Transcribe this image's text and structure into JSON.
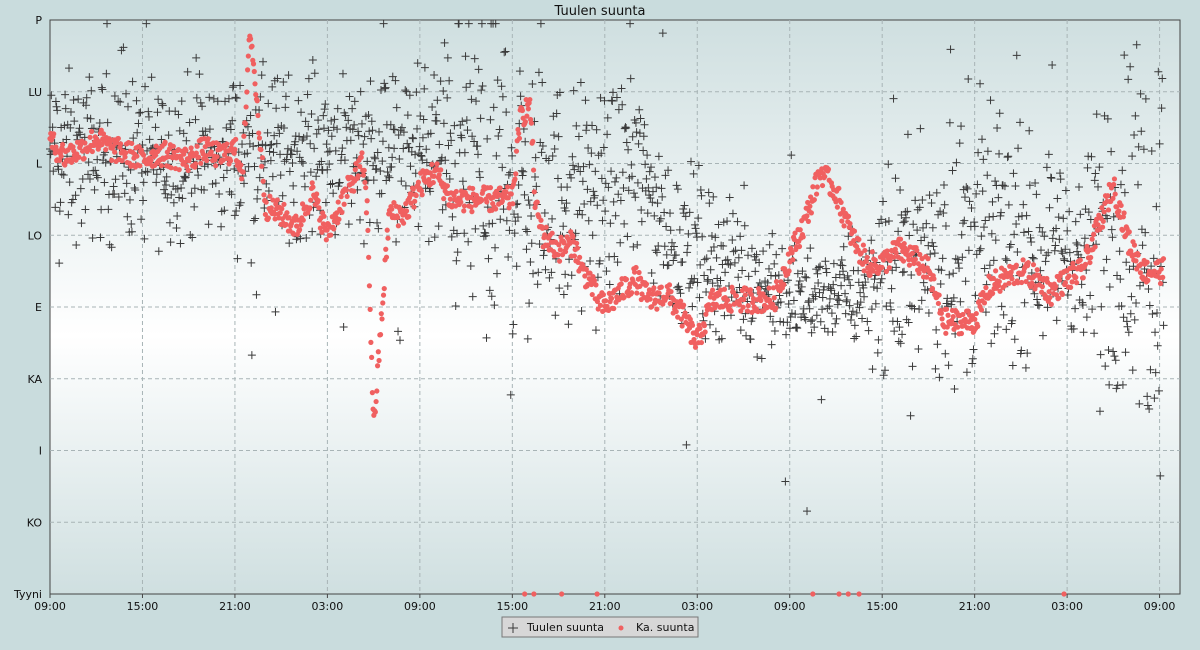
{
  "chart_data": {
    "type": "scatter",
    "title": "Tuulen suunta",
    "y_categories": [
      "Tyyni",
      "KO",
      "I",
      "KA",
      "E",
      "LO",
      "L",
      "LU",
      "P"
    ],
    "x_tick_labels": [
      "09:00",
      "15:00",
      "21:00",
      "03:00",
      "09:00",
      "15:00",
      "21:00",
      "03:00",
      "09:00",
      "15:00",
      "21:00",
      "03:00",
      "09:00"
    ],
    "x_range_hours": [
      0,
      73
    ],
    "ylim": [
      0,
      8
    ],
    "grid": true,
    "legend_position": "bottom-center",
    "colors": {
      "raw": "#3a3a3a",
      "avg": "#f06060"
    },
    "series": [
      {
        "name": "Tuulen suunta",
        "marker": "plus",
        "note_x_unit": "hours",
        "segments_x": [
          0,
          12,
          20,
          24,
          27,
          30,
          31,
          36,
          38,
          40,
          46,
          48,
          51,
          56,
          60,
          63,
          66,
          67,
          69,
          71,
          72
        ],
        "segments_y_center": [
          6.1,
          6.1,
          6.2,
          6.15,
          6.0,
          5.7,
          5.5,
          5.5,
          6.0,
          5.0,
          4.3,
          4.1,
          4.2,
          4.6,
          5.0,
          4.9,
          4.9,
          4.5,
          5.2,
          5.0,
          5.0
        ],
        "segments_spread": [
          0.55,
          0.55,
          0.55,
          0.5,
          1.2,
          1.3,
          0.9,
          0.7,
          0.6,
          0.6,
          0.4,
          0.35,
          0.3,
          0.8,
          0.9,
          0.7,
          0.55,
          0.6,
          1.2,
          1.4,
          1.4
        ]
      },
      {
        "name": "Ka. suunta",
        "marker": "circle",
        "points_x": [
          0,
          1,
          2,
          3,
          4,
          5,
          6,
          7,
          8,
          9,
          10,
          11,
          12,
          12.5,
          13,
          14,
          15,
          16,
          17,
          18,
          19,
          20,
          20.3,
          20.6,
          21,
          22,
          23,
          24,
          25,
          26,
          27,
          28,
          29,
          30,
          30.5,
          31,
          31.2,
          31.5,
          32,
          33,
          34,
          34.5,
          35,
          35.5,
          36,
          37,
          38,
          38.5,
          39,
          40,
          41,
          42,
          43,
          44,
          45,
          46,
          47,
          48,
          49,
          50,
          51,
          52,
          53,
          54,
          55,
          56,
          57,
          58,
          59,
          60,
          61,
          62,
          63,
          64,
          65,
          66,
          67,
          68,
          69,
          70,
          71,
          72
        ],
        "points_y": [
          6.3,
          6.1,
          6.2,
          6.35,
          6.2,
          6.15,
          6.05,
          6.15,
          6.1,
          6.05,
          6.2,
          6.1,
          6.2,
          5.9,
          7.9,
          5.4,
          5.3,
          5.1,
          5.6,
          5.0,
          5.5,
          5.9,
          6.0,
          5.3,
          2.3,
          5.3,
          5.3,
          5.7,
          5.9,
          5.5,
          5.5,
          5.5,
          5.5,
          5.5,
          6.6,
          6.8,
          6.7,
          5.4,
          5.0,
          4.8,
          4.9,
          4.5,
          4.4,
          4.1,
          4.0,
          4.2,
          4.4,
          4.2,
          4.1,
          4.2,
          3.9,
          3.5,
          4.1,
          4.1,
          4.1,
          4.1,
          4.1,
          4.7,
          5.2,
          5.9,
          5.6,
          5.0,
          4.6,
          4.6,
          4.8,
          4.7,
          4.5,
          3.8,
          3.8,
          3.8,
          4.3,
          4.4,
          4.5,
          4.4,
          4.2,
          4.4,
          4.5,
          5.1,
          5.7,
          4.9,
          4.5,
          4.5
        ],
        "calm_x": [
          30.8,
          31.4,
          33.2,
          35.5,
          49.5,
          51.2,
          51.8,
          52.5,
          65.8
        ]
      }
    ]
  }
}
